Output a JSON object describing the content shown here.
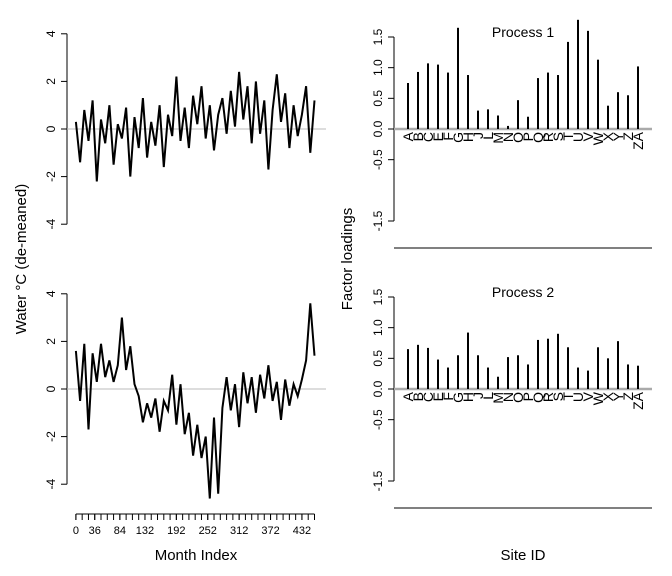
{
  "chart_data": [
    {
      "type": "line",
      "color": "#000000",
      "x": [
        0,
        8,
        16,
        24,
        32,
        40,
        48,
        56,
        64,
        72,
        80,
        88,
        96,
        104,
        112,
        120,
        128,
        136,
        144,
        152,
        160,
        168,
        176,
        184,
        192,
        200,
        208,
        216,
        224,
        232,
        240,
        248,
        256,
        264,
        272,
        280,
        288,
        296,
        304,
        312,
        320,
        328,
        336,
        344,
        352,
        360,
        368,
        376,
        384,
        392,
        400,
        408,
        416,
        424,
        432,
        440,
        448,
        456
      ],
      "values": [
        0.3,
        -1.4,
        0.8,
        -0.5,
        1.2,
        -2.2,
        0.4,
        -0.6,
        1.0,
        -1.5,
        0.2,
        -0.4,
        0.9,
        -2.0,
        0.5,
        -0.8,
        1.3,
        -1.2,
        0.3,
        -0.7,
        1.0,
        -1.6,
        0.6,
        -0.3,
        2.2,
        -0.5,
        0.9,
        -0.8,
        1.4,
        0.2,
        1.8,
        -0.4,
        1.0,
        -0.9,
        0.6,
        1.3,
        -0.2,
        1.6,
        0.1,
        2.4,
        0.4,
        1.8,
        -0.6,
        2.0,
        -0.2,
        1.2,
        -1.7,
        0.8,
        2.3,
        0.3,
        1.5,
        -0.8,
        1.0,
        -0.3,
        0.6,
        1.8,
        -1.0,
        1.2
      ],
      "xlim": [
        -17,
        478
      ],
      "ylim": [
        -5,
        5
      ],
      "yticks": [
        -4,
        -2,
        0,
        2,
        4
      ]
    },
    {
      "type": "bar",
      "title": "Process 1",
      "color": "#000000",
      "categories": [
        "A",
        "B",
        "C",
        "E",
        "F",
        "G",
        "H",
        "J",
        "L",
        "M",
        "N",
        "O",
        "P",
        "Q",
        "R",
        "S",
        "T",
        "U",
        "V",
        "W",
        "X",
        "Y",
        "Z",
        "ZA"
      ],
      "values": [
        0.75,
        0.93,
        1.07,
        1.05,
        0.92,
        1.65,
        0.88,
        0.3,
        0.32,
        0.22,
        0.05,
        0.47,
        0.2,
        0.83,
        0.92,
        0.88,
        1.42,
        1.78,
        1.6,
        1.13,
        0.38,
        0.6,
        0.55,
        1.02
      ],
      "ylim": [
        -1.94,
        1.94
      ],
      "yticks": [
        -1.5,
        -0.5,
        {
          "value": 0,
          "label": "0.0"
        },
        0.5,
        {
          "value": 1,
          "label": "1.0"
        },
        1.5
      ]
    },
    {
      "type": "line",
      "color": "#000000",
      "x": [
        0,
        8,
        16,
        24,
        32,
        40,
        48,
        56,
        64,
        72,
        80,
        88,
        96,
        104,
        112,
        120,
        128,
        136,
        144,
        152,
        160,
        168,
        176,
        184,
        192,
        200,
        208,
        216,
        224,
        232,
        240,
        248,
        256,
        264,
        272,
        280,
        288,
        296,
        304,
        312,
        320,
        328,
        336,
        344,
        352,
        360,
        368,
        376,
        384,
        392,
        400,
        408,
        416,
        424,
        432,
        440,
        448,
        456
      ],
      "values": [
        1.6,
        -0.5,
        1.9,
        -1.7,
        1.5,
        0.3,
        1.9,
        0.5,
        1.2,
        0.3,
        1.0,
        3.0,
        0.8,
        1.8,
        0.2,
        -0.3,
        -1.4,
        -0.6,
        -1.2,
        -0.4,
        -1.8,
        -0.5,
        -0.9,
        0.6,
        -1.5,
        0.2,
        -1.9,
        -1.0,
        -2.8,
        -1.5,
        -2.9,
        -2.0,
        -4.6,
        -1.2,
        -4.4,
        -0.8,
        0.5,
        -0.9,
        0.2,
        -1.6,
        0.7,
        -0.6,
        0.5,
        -1.0,
        0.6,
        -0.4,
        1.0,
        -0.5,
        0.3,
        -1.3,
        0.4,
        -0.7,
        0.2,
        -0.3,
        0.4,
        1.2,
        3.6,
        1.4
      ],
      "xlim": [
        -17,
        478
      ],
      "ylim": [
        -5,
        5
      ],
      "yticks": [
        -4,
        -2,
        0,
        2,
        4
      ],
      "xticks": [
        0,
        36,
        84,
        132,
        192,
        252,
        312,
        372,
        432
      ],
      "xminorticks": [
        0,
        12,
        24,
        36,
        48,
        60,
        72,
        84,
        96,
        108,
        120,
        132,
        144,
        156,
        168,
        180,
        192,
        204,
        216,
        228,
        240,
        252,
        264,
        276,
        288,
        300,
        312,
        324,
        336,
        348,
        360,
        372,
        384,
        396,
        408,
        420,
        432,
        444,
        456
      ]
    },
    {
      "type": "bar",
      "title": "Process 2",
      "color": "#000000",
      "categories": [
        "A",
        "B",
        "C",
        "E",
        "F",
        "G",
        "H",
        "J",
        "L",
        "M",
        "N",
        "O",
        "P",
        "Q",
        "R",
        "S",
        "T",
        "U",
        "V",
        "W",
        "X",
        "Y",
        "Z",
        "ZA"
      ],
      "values": [
        0.65,
        0.72,
        0.67,
        0.48,
        0.35,
        0.55,
        0.92,
        0.55,
        0.35,
        0.2,
        0.52,
        0.55,
        0.4,
        0.8,
        0.82,
        0.9,
        0.68,
        0.35,
        0.3,
        0.68,
        0.5,
        0.78,
        0.4,
        0.38
      ],
      "ylim": [
        -1.94,
        1.94
      ],
      "yticks": [
        -1.5,
        -0.5,
        {
          "value": 0,
          "label": "0.0"
        },
        0.5,
        {
          "value": 1,
          "label": "1.0"
        },
        1.5
      ]
    }
  ],
  "axis_labels": {
    "left_y": "Water °C (de-meaned)",
    "left_x": "Month Index",
    "right_y": "Factor loadings",
    "right_x": "Site ID"
  }
}
